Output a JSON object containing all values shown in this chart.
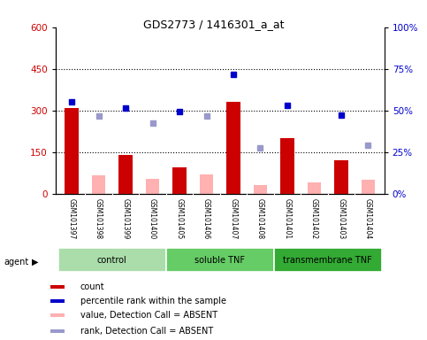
{
  "title": "GDS2773 / 1416301_a_at",
  "samples": [
    "GSM101397",
    "GSM101398",
    "GSM101399",
    "GSM101400",
    "GSM101405",
    "GSM101406",
    "GSM101407",
    "GSM101408",
    "GSM101401",
    "GSM101402",
    "GSM101403",
    "GSM101404"
  ],
  "groups": [
    {
      "name": "control",
      "start": 0,
      "end": 4,
      "color": "#aaddaa"
    },
    {
      "name": "soluble TNF",
      "start": 4,
      "end": 8,
      "color": "#66cc66"
    },
    {
      "name": "transmembrane TNF",
      "start": 8,
      "end": 12,
      "color": "#33aa33"
    }
  ],
  "count_present": [
    310,
    null,
    140,
    null,
    95,
    null,
    330,
    null,
    200,
    null,
    120,
    null
  ],
  "count_absent": [
    null,
    65,
    null,
    55,
    null,
    70,
    null,
    30,
    null,
    40,
    null,
    50
  ],
  "rank_present": [
    55,
    null,
    52,
    null,
    49,
    null,
    72,
    null,
    53,
    null,
    47,
    null
  ],
  "rank_absent": [
    null,
    47,
    null,
    43,
    null,
    47,
    null,
    27,
    null,
    null,
    null,
    28
  ],
  "rank_present_plot": [
    330,
    null,
    310,
    null,
    295,
    null,
    430,
    null,
    320,
    null,
    285,
    null
  ],
  "rank_absent_plot": [
    null,
    280,
    null,
    255,
    null,
    280,
    null,
    165,
    null,
    null,
    null,
    175
  ],
  "ylim_left": [
    0,
    600
  ],
  "ylim_right": [
    0,
    100
  ],
  "yticks_left": [
    0,
    150,
    300,
    450,
    600
  ],
  "yticks_right": [
    0,
    25,
    50,
    75,
    100
  ],
  "ytick_labels_left": [
    "0",
    "150",
    "300",
    "450",
    "600"
  ],
  "ytick_labels_right": [
    "0%",
    "25%",
    "50%",
    "75%",
    "100%"
  ],
  "left_axis_color": "#CC0000",
  "right_axis_color": "#0000CC",
  "bar_present_color": "#CC0000",
  "bar_absent_color": "#FFB0B0",
  "dot_present_color": "#0000CC",
  "dot_absent_color": "#9999CC",
  "bg_color": "#FFFFFF",
  "legend_items": [
    {
      "label": "count",
      "color": "#CC0000"
    },
    {
      "label": "percentile rank within the sample",
      "color": "#0000CC"
    },
    {
      "label": "value, Detection Call = ABSENT",
      "color": "#FFB0B0"
    },
    {
      "label": "rank, Detection Call = ABSENT",
      "color": "#9999CC"
    }
  ]
}
